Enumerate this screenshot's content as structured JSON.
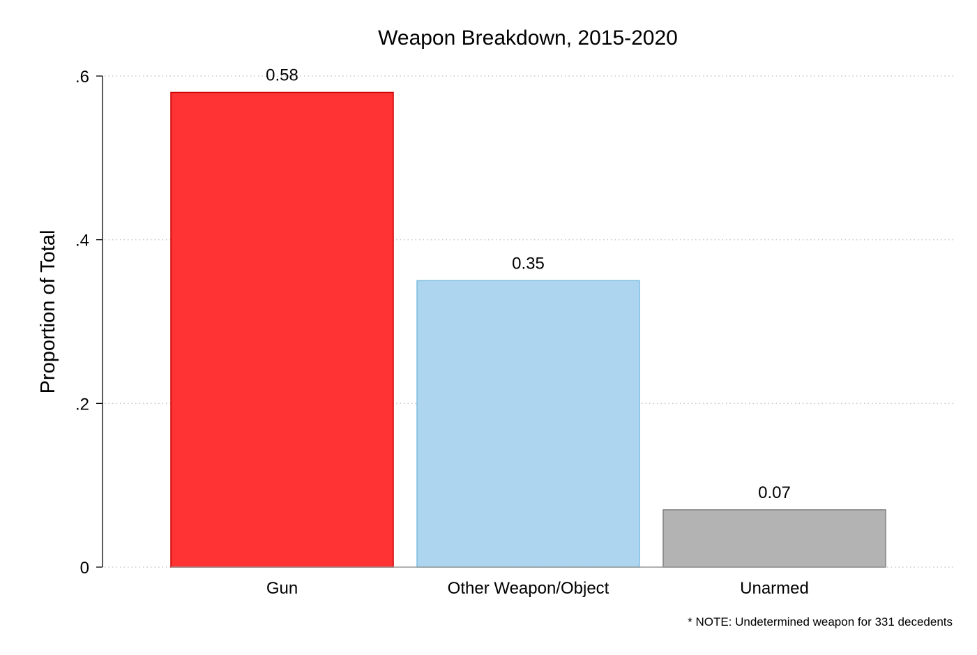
{
  "chart_data": {
    "type": "bar",
    "title": "Weapon Breakdown, 2015-2020",
    "xlabel": "",
    "ylabel": "Proportion of Total",
    "categories": [
      "Gun",
      "Other Weapon/Object",
      "Unarmed"
    ],
    "values": [
      0.58,
      0.35,
      0.07
    ],
    "value_labels": [
      "0.58",
      "0.35",
      "0.07"
    ],
    "bar_colors": [
      "#ff3333",
      "#aed5ef",
      "#b3b3b3"
    ],
    "bar_edge_colors": [
      "#cc0000",
      "#7cbde3",
      "#808080"
    ],
    "ylim": [
      0,
      0.6
    ],
    "yticks": [
      0,
      0.2,
      0.4,
      0.6
    ],
    "ytick_labels": [
      "0",
      ".2",
      ".4",
      ".6"
    ],
    "grid": "horizontal-dotted",
    "note": "* NOTE: Undetermined weapon for 331 decedents"
  }
}
